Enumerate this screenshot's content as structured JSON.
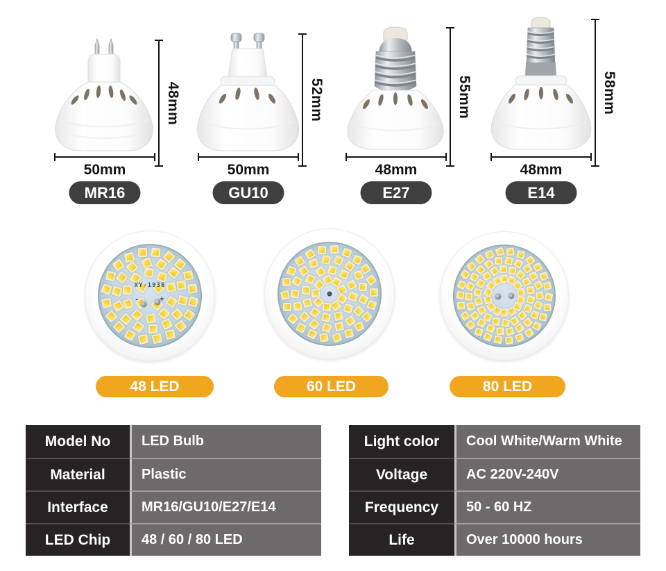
{
  "bulbs": [
    {
      "name": "MR16",
      "height_label": "48mm",
      "width_label": "50mm"
    },
    {
      "name": "GU10",
      "height_label": "52mm",
      "width_label": "50mm"
    },
    {
      "name": "E27",
      "height_label": "55mm",
      "width_label": "48mm"
    },
    {
      "name": "E14",
      "height_label": "58mm",
      "width_label": "48mm"
    }
  ],
  "led_discs": [
    {
      "label": "48 LED",
      "count": 48,
      "rings": [
        20,
        14,
        10,
        4
      ],
      "pcb_label": "XY-1936",
      "polarity_marks": "- +"
    },
    {
      "label": "60 LED",
      "count": 60,
      "rings": [
        22,
        17,
        12,
        9
      ]
    },
    {
      "label": "80 LED",
      "count": 80,
      "rings": [
        26,
        22,
        18,
        14
      ]
    }
  ],
  "spec_tables": {
    "left": {
      "rows": [
        {
          "label": "Model No",
          "value": "LED Bulb"
        },
        {
          "label": "Material",
          "value": "Plastic"
        },
        {
          "label": "Interface",
          "value": "MR16/GU10/E27/E14"
        },
        {
          "label": "LED Chip",
          "value": "48 / 60 / 80 LED"
        }
      ]
    },
    "right": {
      "rows": [
        {
          "label": "Light color",
          "value": "Cool White/Warm White"
        },
        {
          "label": "Voltage",
          "value": "AC 220V-240V"
        },
        {
          "label": "Frequency",
          "value": "50 - 60 HZ"
        },
        {
          "label": "Life",
          "value": "Over 10000 hours"
        }
      ]
    }
  },
  "colors": {
    "accent_orange": "#F0A71F",
    "badge_gray": "#3F3F3F",
    "table_label_bg": "#272324",
    "table_value_bg": "#6E696B",
    "pcb_blue": "#BFD4E3",
    "chip_yellow": "#F7D83F",
    "dimension_ink": "#141414"
  }
}
